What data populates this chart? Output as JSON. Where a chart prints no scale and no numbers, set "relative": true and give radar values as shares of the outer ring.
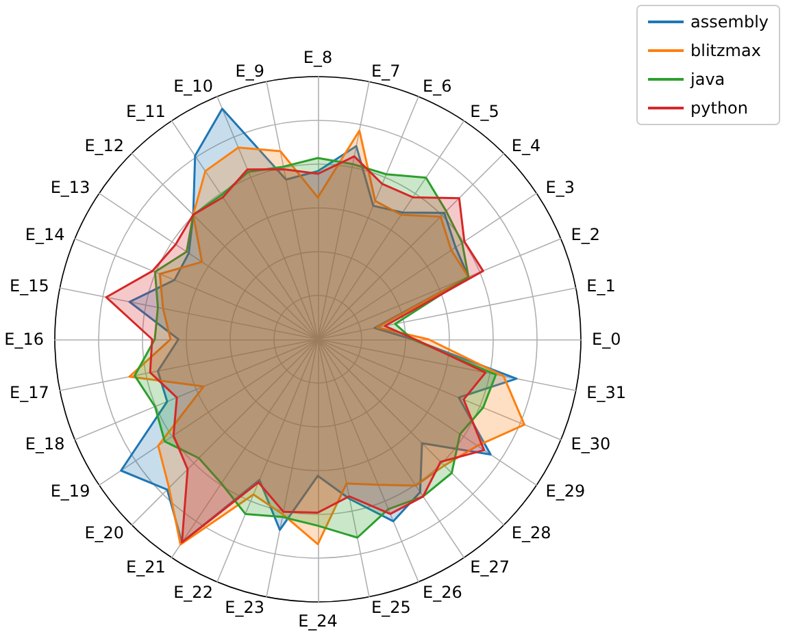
{
  "chart_data": {
    "type": "radar",
    "relative": true,
    "grid": true,
    "legend": "top right",
    "categories": [
      "E_8",
      "E_7",
      "E_6",
      "E_5",
      "E_4",
      "E_3",
      "E_2",
      "E_1",
      "E_0",
      "E_31",
      "E_30",
      "E_29",
      "E_28",
      "E_27",
      "E_26",
      "E_25",
      "E_24",
      "E_23",
      "E_22",
      "E_21",
      "E_20",
      "E_19",
      "E_18",
      "E_17",
      "E_16",
      "E_15",
      "E_14",
      "E_13",
      "E_12",
      "E_11",
      "E_10",
      "E_9"
    ],
    "series": [
      {
        "name": "assembly",
        "color": "#1f77b4",
        "values": [
          0.64,
          0.75,
          0.55,
          0.58,
          0.68,
          0.63,
          0.62,
          0.22,
          0.36,
          0.77,
          0.58,
          0.79,
          0.56,
          0.7,
          0.75,
          0.62,
          0.52,
          0.74,
          0.58,
          0.93,
          0.81,
          0.9,
          0.62,
          0.62,
          0.53,
          0.73,
          0.59,
          0.59,
          0.67,
          0.84,
          0.95,
          0.62
        ]
      },
      {
        "name": "blitzmax",
        "color": "#ff7f0e",
        "values": [
          0.54,
          0.81,
          0.57,
          0.57,
          0.66,
          0.61,
          0.62,
          0.23,
          0.42,
          0.72,
          0.85,
          0.73,
          0.68,
          0.67,
          0.6,
          0.56,
          0.78,
          0.68,
          0.64,
          0.94,
          0.8,
          0.73,
          0.47,
          0.73,
          0.56,
          0.6,
          0.65,
          0.53,
          0.67,
          0.77,
          0.79,
          0.73
        ]
      },
      {
        "name": "java",
        "color": "#2ca02c",
        "values": [
          0.69,
          0.68,
          0.68,
          0.74,
          0.69,
          0.66,
          0.62,
          0.3,
          0.36,
          0.69,
          0.68,
          0.65,
          0.72,
          0.72,
          0.7,
          0.77,
          0.71,
          0.69,
          0.72,
          0.66,
          0.64,
          0.7,
          0.67,
          0.71,
          0.62,
          0.62,
          0.67,
          0.6,
          0.67,
          0.66,
          0.69,
          0.67
        ]
      },
      {
        "name": "python",
        "color": "#d62728",
        "values": [
          0.63,
          0.71,
          0.64,
          0.65,
          0.76,
          0.67,
          0.68,
          0.26,
          0.37,
          0.65,
          0.6,
          0.76,
          0.66,
          0.72,
          0.72,
          0.61,
          0.66,
          0.67,
          0.59,
          0.93,
          0.7,
          0.66,
          0.58,
          0.65,
          0.63,
          0.82,
          0.68,
          0.65,
          0.67,
          0.65,
          0.7,
          0.66
        ]
      }
    ]
  }
}
